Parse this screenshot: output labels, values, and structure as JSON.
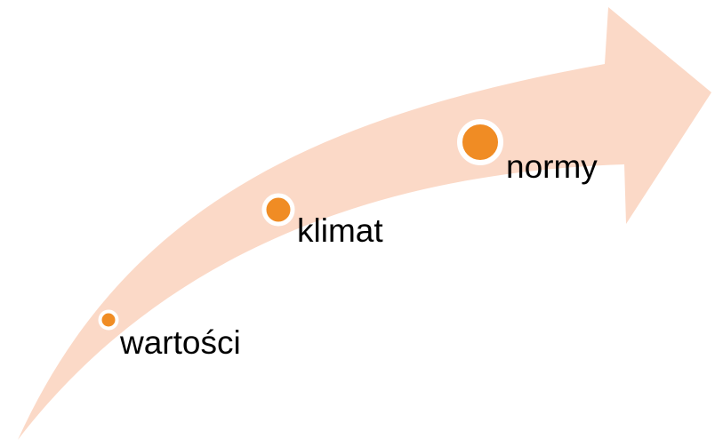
{
  "diagram": {
    "colors": {
      "arrow": "#fbd9c7",
      "dot": "#f08c24",
      "dot_ring": "#ffffff",
      "text": "#000000"
    },
    "steps": [
      {
        "label": "wartości"
      },
      {
        "label": "klimat"
      },
      {
        "label": "normy"
      }
    ]
  }
}
